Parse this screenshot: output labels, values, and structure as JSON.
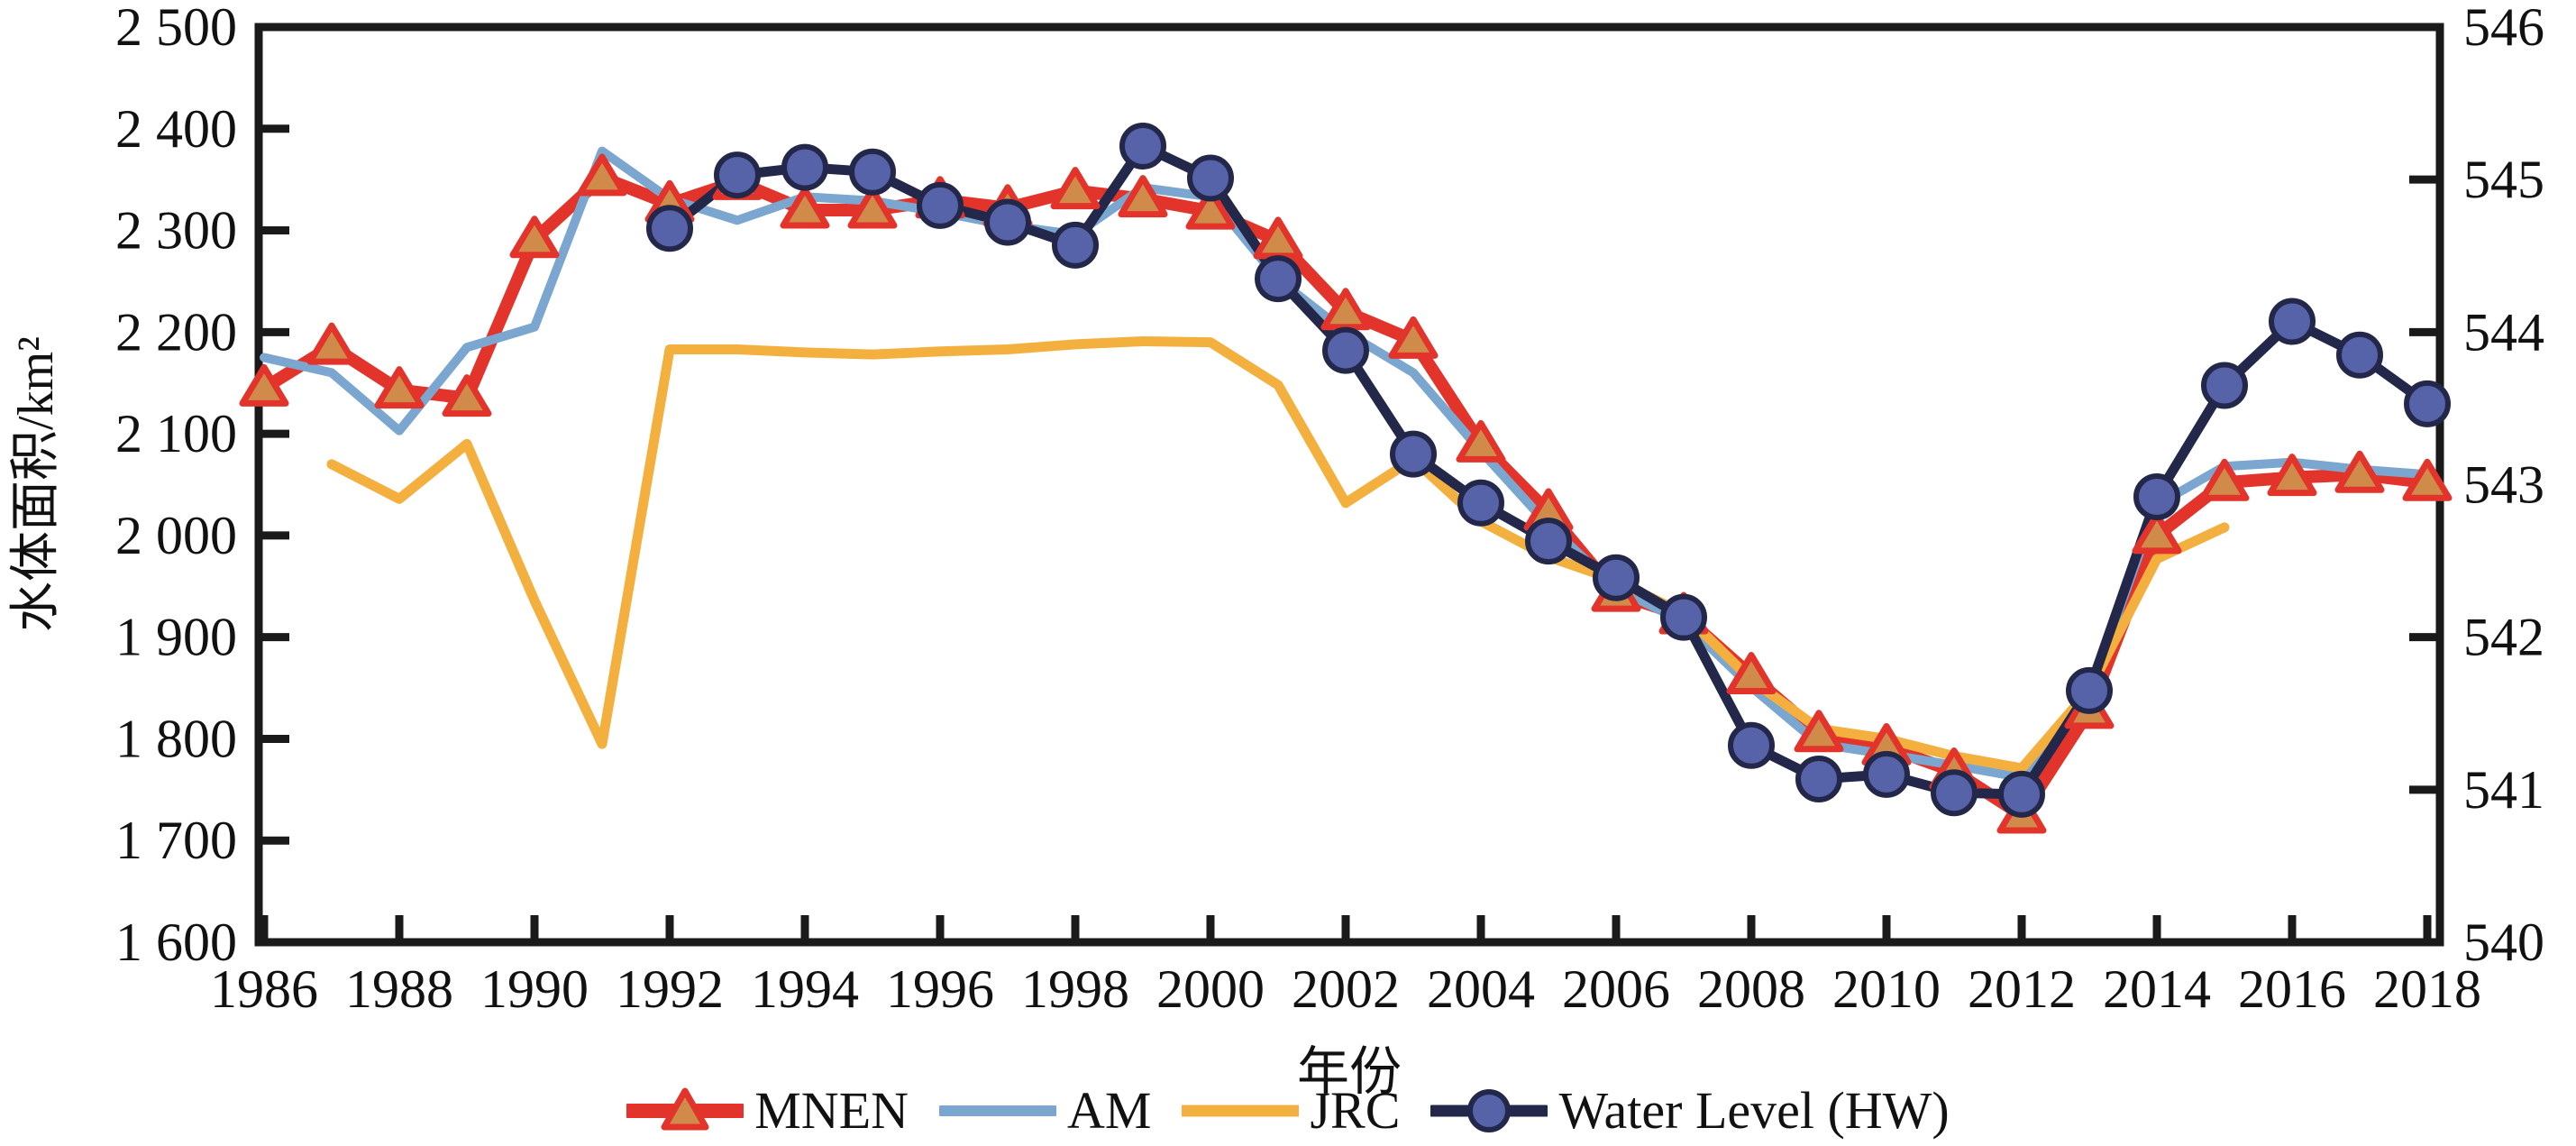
{
  "figure": {
    "background": "#ffffff",
    "axis_color": "#1a1a1a"
  },
  "chart_data": {
    "type": "line",
    "title": "",
    "xlabel": "年份",
    "ylabel_left": "水体面积/km²",
    "ylabel_right": "",
    "x": [
      1986,
      1987,
      1988,
      1989,
      1990,
      1991,
      1992,
      1993,
      1994,
      1995,
      1996,
      1997,
      1998,
      1999,
      2000,
      2001,
      2002,
      2003,
      2004,
      2005,
      2006,
      2007,
      2008,
      2009,
      2010,
      2011,
      2012,
      2013,
      2014,
      2015,
      2016,
      2017,
      2018
    ],
    "x_tick_labels": [
      "1986",
      "1988",
      "1990",
      "1992",
      "1994",
      "1996",
      "1998",
      "2000",
      "2002",
      "2004",
      "2006",
      "2008",
      "2010",
      "2012",
      "2014",
      "2016",
      "2018"
    ],
    "left_axis": {
      "min": 1600,
      "max": 2500,
      "tick_step": 100,
      "tick_labels": [
        "2 500",
        "2 400",
        "2 300",
        "2 200",
        "2 100",
        "2 000",
        "1 900",
        "1 800",
        "1 700",
        "1 600"
      ]
    },
    "right_axis": {
      "min": 540,
      "max": 546,
      "tick_step": 1,
      "tick_labels": [
        "546",
        "545",
        "544",
        "543",
        "542",
        "541",
        "540"
      ]
    },
    "grid": false,
    "legend_position": "bottom-center",
    "series": [
      {
        "name": "MNEN",
        "axis": "left",
        "color": "#e2342b",
        "marker": "triangle",
        "marker_fill": "#d08b4b",
        "values": [
          2145,
          2186,
          2143,
          2135,
          2291,
          2352,
          2326,
          2348,
          2320,
          2320,
          2330,
          2322,
          2339,
          2331,
          2319,
          2290,
          2220,
          2192,
          2090,
          2023,
          1943,
          1921,
          1862,
          1805,
          1792,
          1768,
          1725,
          1828,
          2000,
          2052,
          2057,
          2060,
          2052
        ]
      },
      {
        "name": "AM",
        "axis": "left",
        "color": "#7ba6cf",
        "marker": "none",
        "marker_fill": "",
        "values": [
          2175,
          2160,
          2103,
          2185,
          2205,
          2378,
          2331,
          2310,
          2333,
          2329,
          2318,
          2305,
          2296,
          2342,
          2333,
          2252,
          2200,
          2160,
          2083,
          2010,
          1948,
          1915,
          1851,
          1795,
          1785,
          1774,
          1762,
          1845,
          2030,
          2068,
          2072,
          2065,
          2060
        ]
      },
      {
        "name": "JRC",
        "axis": "left",
        "color": "#f4b03f",
        "marker": "none",
        "marker_fill": "",
        "values": [
          null,
          2070,
          2036,
          2090,
          1936,
          1795,
          2183,
          2183,
          2180,
          2178,
          2181,
          2183,
          2188,
          2191,
          2190,
          2148,
          2032,
          2075,
          2014,
          1979,
          1956,
          1923,
          1858,
          1810,
          1800,
          1783,
          1771,
          1848,
          1977,
          2008,
          null,
          null,
          null
        ]
      },
      {
        "name": "Water Level (HW)",
        "axis": "right",
        "color": "#23284a",
        "marker": "circle",
        "marker_fill": "#5763a8",
        "values": [
          null,
          null,
          null,
          null,
          null,
          null,
          544.68,
          545.03,
          545.08,
          545.05,
          544.83,
          544.72,
          544.57,
          545.22,
          545.01,
          544.35,
          543.88,
          543.2,
          542.88,
          542.63,
          542.39,
          542.13,
          541.29,
          541.07,
          541.1,
          540.98,
          540.97,
          541.65,
          542.92,
          543.65,
          544.07,
          543.85,
          543.53
        ]
      }
    ]
  },
  "legend": {
    "items": [
      {
        "label": "MNEN"
      },
      {
        "label": "AM"
      },
      {
        "label": "JRC"
      },
      {
        "label": "Water Level (HW)"
      }
    ]
  }
}
